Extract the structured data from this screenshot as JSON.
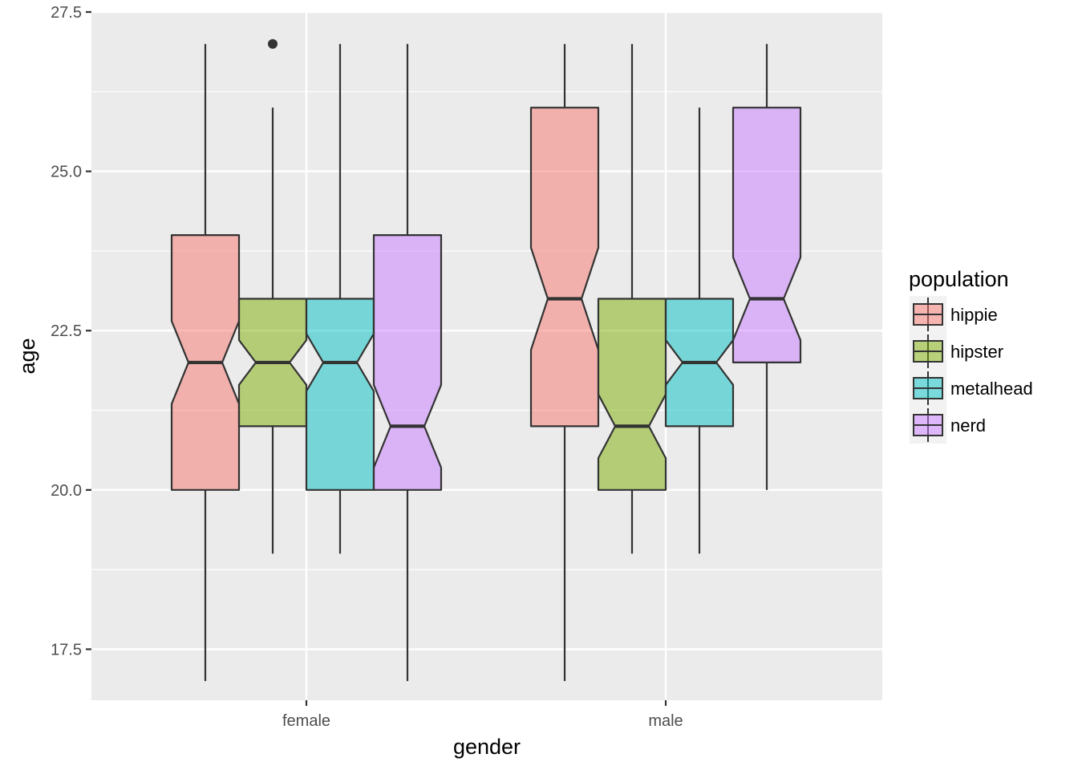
{
  "chart_data": {
    "type": "boxplot",
    "title": "",
    "xlabel": "gender",
    "ylabel": "age",
    "ylim": [
      16.7,
      27.5
    ],
    "y_ticks": [
      17.5,
      20.0,
      22.5,
      25.0,
      27.5
    ],
    "y_tick_labels": [
      "17.5",
      "20.0",
      "22.5",
      "25.0",
      "27.5"
    ],
    "categories": [
      "female",
      "male"
    ],
    "notched": true,
    "grid": true,
    "legend": {
      "title": "population",
      "position": "right"
    },
    "series": [
      {
        "name": "hippie",
        "color": "#F8766D",
        "boxes": [
          {
            "whisker_low": 17,
            "q1": 20,
            "median": 22,
            "q3": 24,
            "whisker_high": 27,
            "notch_low": 21.35,
            "notch_high": 22.65,
            "outliers": []
          },
          {
            "whisker_low": 17,
            "q1": 21,
            "median": 23,
            "q3": 26,
            "whisker_high": 27,
            "notch_low": 22.2,
            "notch_high": 23.8,
            "outliers": []
          }
        ]
      },
      {
        "name": "hipster",
        "color": "#7CAE00",
        "boxes": [
          {
            "whisker_low": 19,
            "q1": 21,
            "median": 22,
            "q3": 23,
            "whisker_high": 26,
            "notch_low": 21.65,
            "notch_high": 22.35,
            "outliers": [
              27
            ]
          },
          {
            "whisker_low": 19,
            "q1": 20,
            "median": 21,
            "q3": 23,
            "whisker_high": 27,
            "notch_low": 20.5,
            "notch_high": 21.5,
            "outliers": []
          }
        ]
      },
      {
        "name": "metalhead",
        "color": "#00BFC4",
        "boxes": [
          {
            "whisker_low": 19,
            "q1": 20,
            "median": 22,
            "q3": 23,
            "whisker_high": 27,
            "notch_low": 21.55,
            "notch_high": 22.45,
            "outliers": []
          },
          {
            "whisker_low": 19,
            "q1": 21,
            "median": 22,
            "q3": 23,
            "whisker_high": 26,
            "notch_low": 21.65,
            "notch_high": 22.35,
            "outliers": []
          }
        ]
      },
      {
        "name": "nerd",
        "color": "#C77CFF",
        "boxes": [
          {
            "whisker_low": 17,
            "q1": 20,
            "median": 21,
            "q3": 24,
            "whisker_high": 27,
            "notch_low": 20.35,
            "notch_high": 21.65,
            "outliers": []
          },
          {
            "whisker_low": 20,
            "q1": 22,
            "median": 23,
            "q3": 26,
            "whisker_high": 27,
            "notch_low": 22.35,
            "notch_high": 23.65,
            "outliers": []
          }
        ]
      }
    ]
  }
}
